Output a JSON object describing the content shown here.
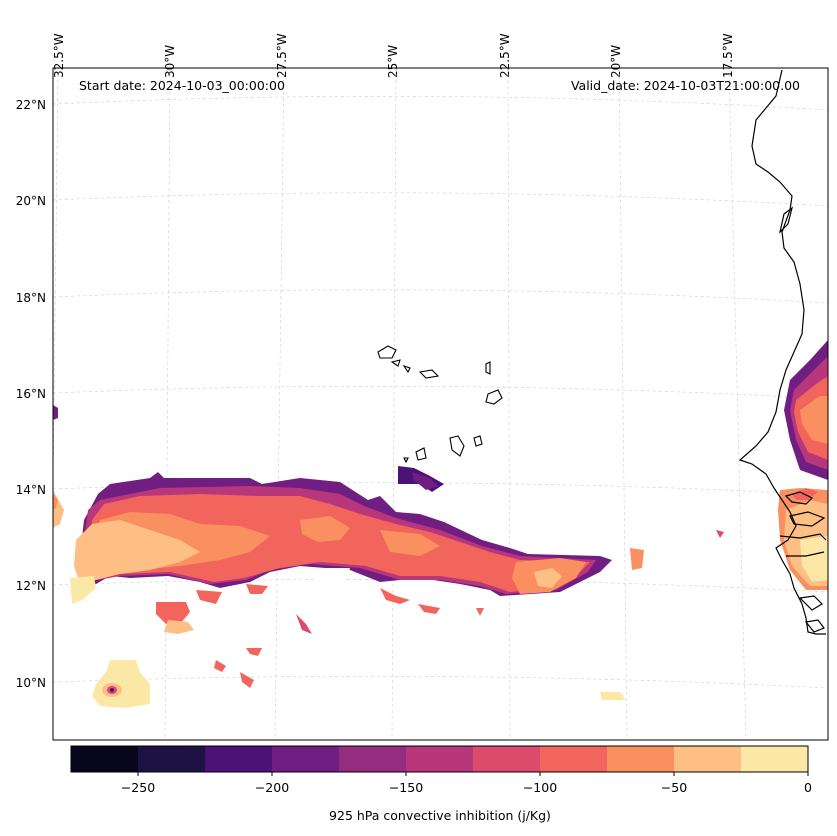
{
  "map": {
    "start_date": "Start date: 2024-10-03_00:00:00",
    "valid_date": "Valid_date: 2024-10-03T21:00:00.00",
    "lon_labels": [
      "32.5°W",
      "30°W",
      "27.5°W",
      "25°W",
      "22.5°W",
      "20°W",
      "17.5°W"
    ],
    "lat_labels": [
      "22°N",
      "20°N",
      "18°N",
      "16°N",
      "14°N",
      "12°N",
      "10°N"
    ],
    "variable": "925 hPa convective inhibition (j/Kg)"
  },
  "colorbar": {
    "title": "925 hPa convective inhibition (j/Kg)",
    "ticks": [
      "−250",
      "−200",
      "−150",
      "−100",
      "−50",
      "0"
    ],
    "range": [
      -275,
      0
    ],
    "colors": [
      "#07061c",
      "#1e1244",
      "#4b1278",
      "#701e82",
      "#942c80",
      "#b8367a",
      "#dc4a6c",
      "#f2655c",
      "#fa9060",
      "#fdbf84",
      "#fce8a6"
    ]
  }
}
